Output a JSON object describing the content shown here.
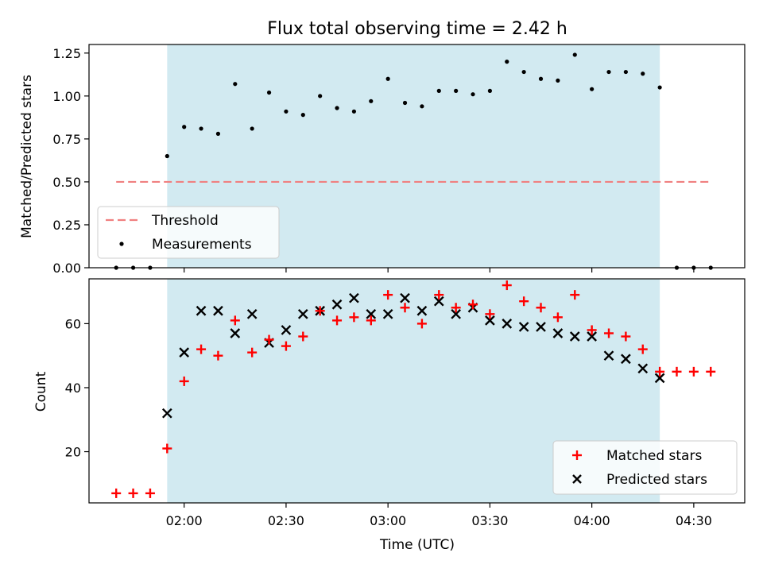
{
  "chart_data": [
    {
      "type": "scatter",
      "title": "Flux total observing time = 2.42 h",
      "xlabel": "",
      "ylabel": "Matched/Predicted stars",
      "ylim": [
        0,
        1.3
      ],
      "yticks": [
        "0.00",
        "0.25",
        "0.50",
        "0.75",
        "1.00",
        "1.25"
      ],
      "shaded_x_range": [
        "01:55",
        "04:20"
      ],
      "threshold": {
        "value": 0.5,
        "x_range": [
          "01:40",
          "04:35"
        ],
        "color": "#f08080"
      },
      "legend": {
        "position": "lower left",
        "entries": [
          "Threshold",
          "Measurements"
        ]
      },
      "series": [
        {
          "name": "Measurements",
          "marker": "dot",
          "color": "#000000",
          "x": [
            "01:40",
            "01:45",
            "01:50",
            "01:55",
            "02:00",
            "02:05",
            "02:10",
            "02:15",
            "02:20",
            "02:25",
            "02:30",
            "02:35",
            "02:40",
            "02:45",
            "02:50",
            "02:55",
            "03:00",
            "03:05",
            "03:10",
            "03:15",
            "03:20",
            "03:25",
            "03:30",
            "03:35",
            "03:40",
            "03:45",
            "03:50",
            "03:55",
            "04:00",
            "04:05",
            "04:10",
            "04:15",
            "04:20",
            "04:25",
            "04:30",
            "04:35"
          ],
          "y": [
            0,
            0,
            0,
            0.65,
            0.82,
            0.81,
            0.78,
            1.07,
            0.81,
            1.02,
            0.91,
            0.89,
            1.0,
            0.93,
            0.91,
            0.97,
            1.1,
            0.96,
            0.94,
            1.03,
            1.03,
            1.01,
            1.03,
            1.2,
            1.14,
            1.1,
            1.09,
            1.24,
            1.04,
            1.14,
            1.14,
            1.13,
            1.05,
            0,
            0,
            0
          ]
        }
      ]
    },
    {
      "type": "scatter",
      "title": "",
      "xlabel": "Time (UTC)",
      "ylabel": "Count",
      "ylim": [
        4,
        74
      ],
      "yticks": [
        "20",
        "40",
        "60"
      ],
      "xlim": [
        "01:32",
        "04:45"
      ],
      "xticks": [
        "02:00",
        "02:30",
        "03:00",
        "03:30",
        "04:00",
        "04:30"
      ],
      "shaded_x_range": [
        "01:55",
        "04:20"
      ],
      "legend": {
        "position": "lower right",
        "entries": [
          "Matched stars",
          "Predicted stars"
        ]
      },
      "series": [
        {
          "name": "Matched stars",
          "marker": "plus",
          "color": "#ff0000",
          "x": [
            "01:40",
            "01:45",
            "01:50",
            "01:55",
            "02:00",
            "02:05",
            "02:10",
            "02:15",
            "02:20",
            "02:25",
            "02:30",
            "02:35",
            "02:40",
            "02:45",
            "02:50",
            "02:55",
            "03:00",
            "03:05",
            "03:10",
            "03:15",
            "03:20",
            "03:25",
            "03:30",
            "03:35",
            "03:40",
            "03:45",
            "03:50",
            "03:55",
            "04:00",
            "04:05",
            "04:10",
            "04:15",
            "04:20",
            "04:25",
            "04:30",
            "04:35"
          ],
          "y": [
            7,
            7,
            7,
            21,
            42,
            52,
            50,
            61,
            51,
            55,
            53,
            56,
            64,
            61,
            62,
            61,
            69,
            65,
            60,
            69,
            65,
            66,
            63,
            72,
            67,
            65,
            62,
            69,
            58,
            57,
            56,
            52,
            45,
            45,
            45,
            45
          ]
        },
        {
          "name": "Predicted stars",
          "marker": "x",
          "color": "#000000",
          "x": [
            "01:55",
            "02:00",
            "02:05",
            "02:10",
            "02:15",
            "02:20",
            "02:25",
            "02:30",
            "02:35",
            "02:40",
            "02:45",
            "02:50",
            "02:55",
            "03:00",
            "03:05",
            "03:10",
            "03:15",
            "03:20",
            "03:25",
            "03:30",
            "03:35",
            "03:40",
            "03:45",
            "03:50",
            "03:55",
            "04:00",
            "04:05",
            "04:10",
            "04:15",
            "04:20"
          ],
          "y": [
            32,
            51,
            64,
            64,
            57,
            63,
            54,
            58,
            63,
            64,
            66,
            68,
            63,
            63,
            68,
            64,
            67,
            63,
            65,
            61,
            60,
            59,
            59,
            57,
            56,
            56,
            50,
            49,
            46,
            43
          ]
        }
      ]
    }
  ],
  "colors": {
    "shade": "#add8e6",
    "threshold": "#f08080",
    "matched": "#ff0000",
    "predicted": "#000000",
    "measurement": "#000000"
  }
}
